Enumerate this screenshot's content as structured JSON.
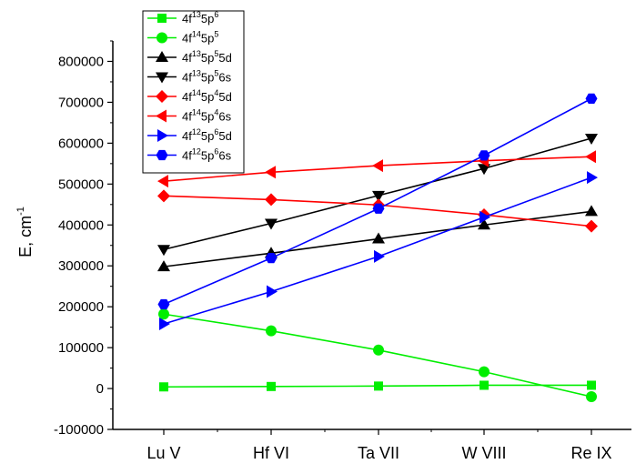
{
  "chart_data": {
    "type": "line",
    "title": "",
    "xlabel": "",
    "ylabel": {
      "base": "E, cm",
      "sup": "-1"
    },
    "categories": [
      "Lu V",
      "Hf VI",
      "Ta VII",
      "W VIII",
      "Re IX"
    ],
    "ylim": [
      -100000,
      850000
    ],
    "yticks": [
      -100000,
      0,
      100000,
      200000,
      300000,
      400000,
      500000,
      600000,
      700000,
      800000
    ],
    "ytick_labels": [
      "-100000",
      "0",
      "100000",
      "200000",
      "300000",
      "400000",
      "500000",
      "600000",
      "700000",
      "800000"
    ],
    "grid": false,
    "legend_position": "top-left",
    "series": [
      {
        "parts": [
          [
            "4f",
            "13"
          ],
          [
            "5p",
            "6"
          ]
        ],
        "color": "#00ee00",
        "marker": "square",
        "values": [
          4000,
          5000,
          6000,
          8000,
          8000
        ]
      },
      {
        "parts": [
          [
            "4f",
            "14"
          ],
          [
            "5p",
            "5"
          ]
        ],
        "color": "#00ee00",
        "marker": "circle",
        "values": [
          182000,
          141000,
          94000,
          41000,
          -20000
        ]
      },
      {
        "parts": [
          [
            "4f",
            "13"
          ],
          [
            "5p",
            "5"
          ],
          [
            "5d",
            ""
          ]
        ],
        "color": "#000000",
        "marker": "triangle-up",
        "values": [
          298000,
          331000,
          366000,
          400000,
          433000
        ]
      },
      {
        "parts": [
          [
            "4f",
            "13"
          ],
          [
            "5p",
            "5"
          ],
          [
            "6s",
            ""
          ]
        ],
        "color": "#000000",
        "marker": "triangle-down",
        "values": [
          340000,
          404000,
          472000,
          538000,
          612000
        ]
      },
      {
        "parts": [
          [
            "4f",
            "14"
          ],
          [
            "5p",
            "4"
          ],
          [
            "5d",
            ""
          ]
        ],
        "color": "#ff0000",
        "marker": "diamond",
        "values": [
          471000,
          462000,
          449000,
          425000,
          397000
        ]
      },
      {
        "parts": [
          [
            "4f",
            "14"
          ],
          [
            "5p",
            "4"
          ],
          [
            "6s",
            ""
          ]
        ],
        "color": "#ff0000",
        "marker": "triangle-left",
        "values": [
          507000,
          529000,
          545000,
          557000,
          567000
        ]
      },
      {
        "parts": [
          [
            "4f",
            "12"
          ],
          [
            "5p",
            "6"
          ],
          [
            "5d",
            ""
          ]
        ],
        "color": "#0000ff",
        "marker": "triangle-right",
        "values": [
          158000,
          237000,
          323000,
          419000,
          516000
        ]
      },
      {
        "parts": [
          [
            "4f",
            "12"
          ],
          [
            "5p",
            "6"
          ],
          [
            "6s",
            ""
          ]
        ],
        "color": "#0000ff",
        "marker": "hexagon",
        "values": [
          206000,
          319000,
          440000,
          570000,
          709000
        ]
      }
    ]
  }
}
